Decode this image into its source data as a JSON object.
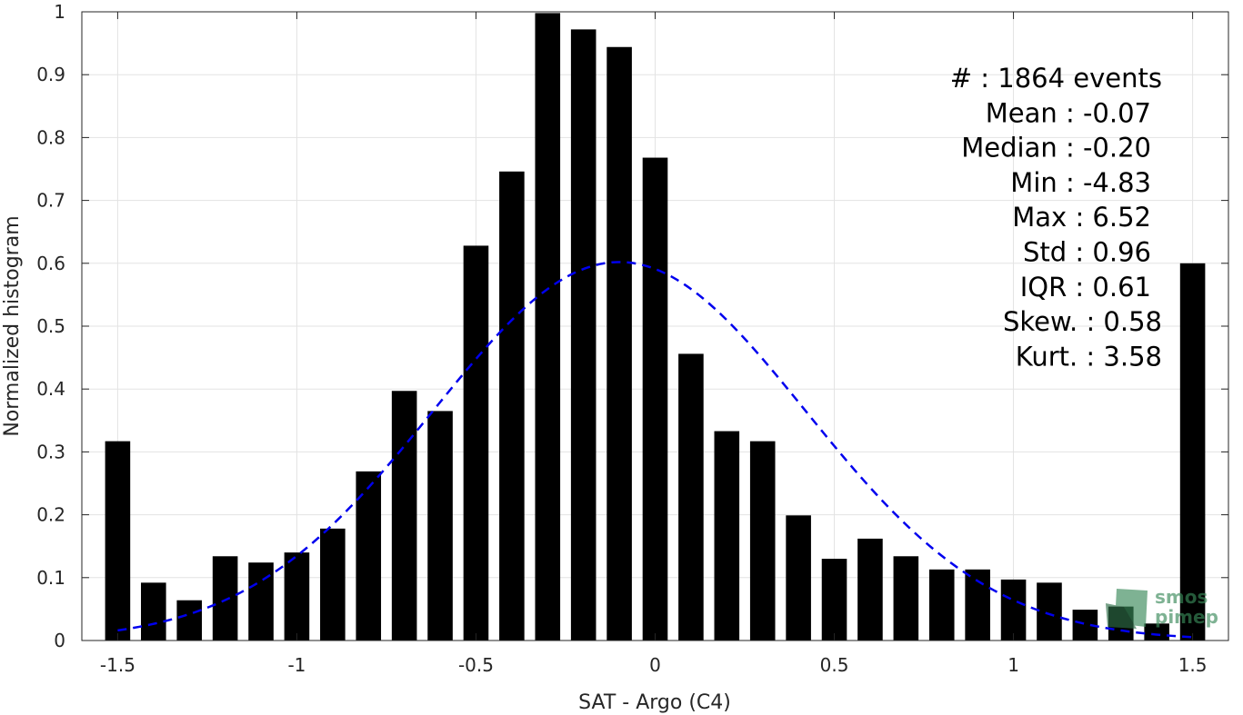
{
  "chart_data": {
    "type": "bar",
    "xlabel": "SAT - Argo (C4)",
    "ylabel": "Normalized histogram",
    "xlim": [
      -1.6,
      1.6
    ],
    "ylim": [
      0,
      1
    ],
    "grid": true,
    "x_ticks": [
      "-1.5",
      "-1",
      "-0.5",
      "0",
      "0.5",
      "1",
      "1.5"
    ],
    "y_ticks": [
      "0",
      "0.1",
      "0.2",
      "0.3",
      "0.4",
      "0.5",
      "0.6",
      "0.7",
      "0.8",
      "0.9",
      "1"
    ],
    "bar_width": 0.07,
    "bars": {
      "x": [
        -1.5,
        -1.4,
        -1.3,
        -1.2,
        -1.1,
        -1.0,
        -0.9,
        -0.8,
        -0.7,
        -0.6,
        -0.5,
        -0.4,
        -0.3,
        -0.2,
        -0.1,
        0.0,
        0.1,
        0.2,
        0.3,
        0.4,
        0.5,
        0.6,
        0.7,
        0.8,
        0.9,
        1.0,
        1.1,
        1.2,
        1.3,
        1.4,
        1.5
      ],
      "values": [
        0.317,
        0.092,
        0.064,
        0.134,
        0.124,
        0.14,
        0.178,
        0.269,
        0.397,
        0.365,
        0.628,
        0.746,
        0.998,
        0.972,
        0.944,
        0.768,
        0.456,
        0.333,
        0.317,
        0.199,
        0.13,
        0.162,
        0.134,
        0.113,
        0.113,
        0.097,
        0.092,
        0.049,
        0.054,
        0.027,
        0.6
      ],
      "color": "#000000"
    },
    "fit_curve": {
      "style": "dashed",
      "color": "#0000ee",
      "x_range": [
        -1.5,
        1.5
      ],
      "mean": -0.1,
      "sigma": 0.52,
      "peak": 0.602
    },
    "stats": [
      {
        "label": "#",
        "text": "#  : 1864 events"
      },
      {
        "label": "Mean",
        "text": "Mean : -0.07"
      },
      {
        "label": "Median",
        "text": "Median : -0.20"
      },
      {
        "label": "Min",
        "text": "Min : -4.83"
      },
      {
        "label": "Max",
        "text": "Max : 6.52"
      },
      {
        "label": "Std",
        "text": "Std : 0.96"
      },
      {
        "label": "IQR",
        "text": "IQR : 0.61"
      },
      {
        "label": "Skew",
        "text": "Skew. : 0.58"
      },
      {
        "label": "Kurt",
        "text": "Kurt. : 3.58"
      }
    ]
  },
  "logo": {
    "line1": "smos",
    "line2": "pimep",
    "color": "#3a8a5a"
  }
}
